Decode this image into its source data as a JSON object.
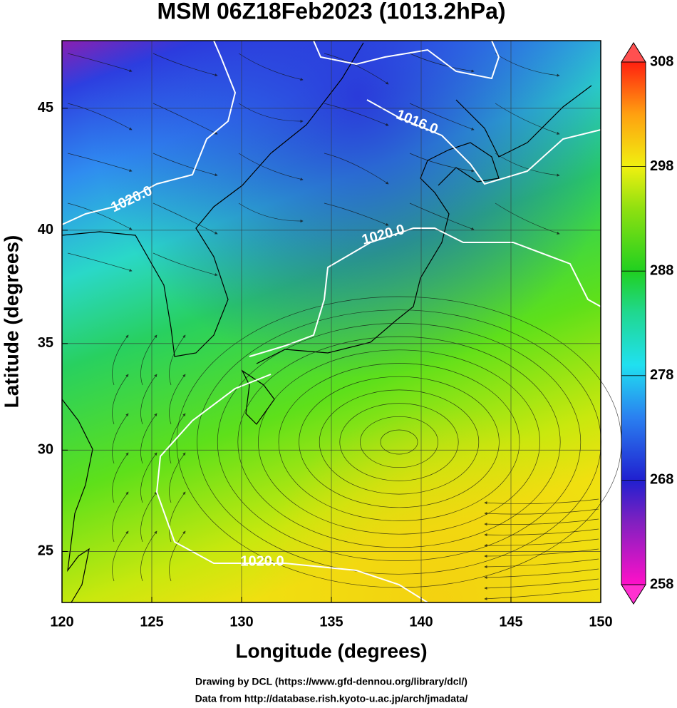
{
  "map": {
    "title": "MSM 06Z18Feb2023 (1013.2hPa)",
    "x_label": "Longitude (degrees)",
    "y_label": "Latitude  (degrees)",
    "projection": "mercator",
    "xlim": [
      120,
      150
    ],
    "xticks": [
      120,
      125,
      130,
      135,
      140,
      145,
      150
    ],
    "ylim": [
      22.4,
      47.6
    ],
    "yticks": [
      25,
      30,
      35,
      40,
      45
    ],
    "grid": true,
    "colorbar": {
      "lim": [
        258,
        308
      ],
      "ticks": [
        258,
        268,
        278,
        288,
        298,
        308
      ]
    },
    "contour_labels": [
      "1016.0",
      "1020.0",
      "1020.0",
      "1020.0"
    ],
    "credits": [
      "Drawing by DCL (https://www.gfd-dennou.org/library/dcl/)",
      "Data from http://database.rish.kyoto-u.ac.jp/arch/jmadata/"
    ]
  }
}
